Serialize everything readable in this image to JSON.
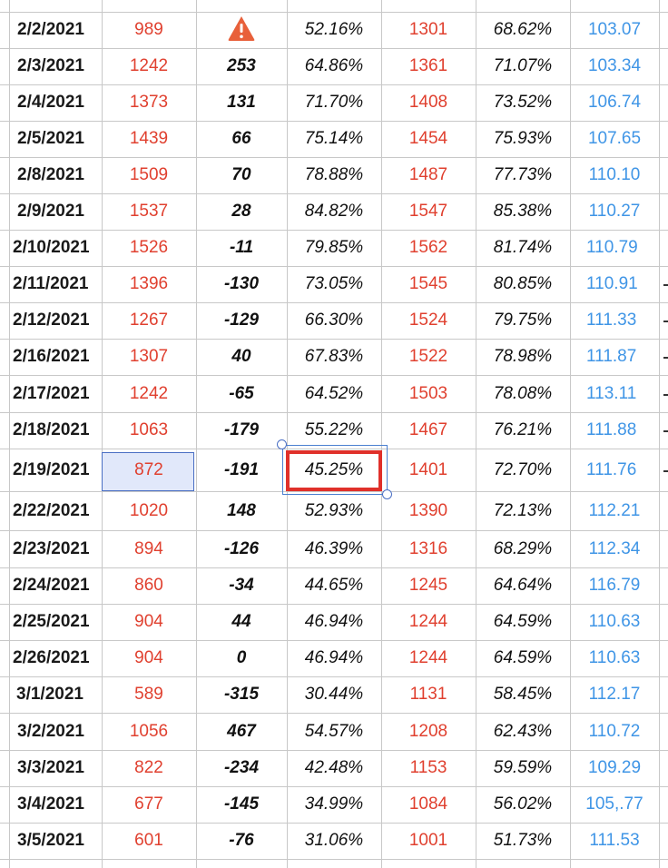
{
  "table": {
    "rows": [
      {
        "date": "2/2/2021",
        "v1": "989",
        "chg": "",
        "pct1": "52.16%",
        "v2": "1301",
        "pct2": "68.62%",
        "v3": "103.07",
        "warning": true
      },
      {
        "date": "2/3/2021",
        "v1": "1242",
        "chg": "253",
        "pct1": "64.86%",
        "v2": "1361",
        "pct2": "71.07%",
        "v3": "103.34"
      },
      {
        "date": "2/4/2021",
        "v1": "1373",
        "chg": "131",
        "pct1": "71.70%",
        "v2": "1408",
        "pct2": "73.52%",
        "v3": "106.74"
      },
      {
        "date": "2/5/2021",
        "v1": "1439",
        "chg": "66",
        "pct1": "75.14%",
        "v2": "1454",
        "pct2": "75.93%",
        "v3": "107.65"
      },
      {
        "date": "2/8/2021",
        "v1": "1509",
        "chg": "70",
        "pct1": "78.88%",
        "v2": "1487",
        "pct2": "77.73%",
        "v3": "110.10"
      },
      {
        "date": "2/9/2021",
        "v1": "1537",
        "chg": "28",
        "pct1": "84.82%",
        "v2": "1547",
        "pct2": "85.38%",
        "v3": "110.27"
      },
      {
        "date": "2/10/2021",
        "v1": "1526",
        "chg": "-11",
        "pct1": "79.85%",
        "v2": "1562",
        "pct2": "81.74%",
        "v3": "110.79"
      },
      {
        "date": "2/11/2021",
        "v1": "1396",
        "chg": "-130",
        "pct1": "73.05%",
        "v2": "1545",
        "pct2": "80.85%",
        "v3": "110.91"
      },
      {
        "date": "2/12/2021",
        "v1": "1267",
        "chg": "-129",
        "pct1": "66.30%",
        "v2": "1524",
        "pct2": "79.75%",
        "v3": "111.33"
      },
      {
        "date": "2/16/2021",
        "v1": "1307",
        "chg": "40",
        "pct1": "67.83%",
        "v2": "1522",
        "pct2": "78.98%",
        "v3": "111.87"
      },
      {
        "date": "2/17/2021",
        "v1": "1242",
        "chg": "-65",
        "pct1": "64.52%",
        "v2": "1503",
        "pct2": "78.08%",
        "v3": "113.11"
      },
      {
        "date": "2/18/2021",
        "v1": "1063",
        "chg": "-179",
        "pct1": "55.22%",
        "v2": "1467",
        "pct2": "76.21%",
        "v3": "111.88"
      },
      {
        "date": "2/19/2021",
        "v1": "872",
        "chg": "-191",
        "pct1": "45.25%",
        "v2": "1401",
        "pct2": "72.70%",
        "v3": "111.76"
      },
      {
        "date": "2/22/2021",
        "v1": "1020",
        "chg": "148",
        "pct1": "52.93%",
        "v2": "1390",
        "pct2": "72.13%",
        "v3": "112.21"
      },
      {
        "date": "2/23/2021",
        "v1": "894",
        "chg": "-126",
        "pct1": "46.39%",
        "v2": "1316",
        "pct2": "68.29%",
        "v3": "112.34"
      },
      {
        "date": "2/24/2021",
        "v1": "860",
        "chg": "-34",
        "pct1": "44.65%",
        "v2": "1245",
        "pct2": "64.64%",
        "v3": "116.79"
      },
      {
        "date": "2/25/2021",
        "v1": "904",
        "chg": "44",
        "pct1": "46.94%",
        "v2": "1244",
        "pct2": "64.59%",
        "v3": "110.63"
      },
      {
        "date": "2/26/2021",
        "v1": "904",
        "chg": "0",
        "pct1": "46.94%",
        "v2": "1244",
        "pct2": "64.59%",
        "v3": "110.63"
      },
      {
        "date": "3/1/2021",
        "v1": "589",
        "chg": "-315",
        "pct1": "30.44%",
        "v2": "1131",
        "pct2": "58.45%",
        "v3": "112.17"
      },
      {
        "date": "3/2/2021",
        "v1": "1056",
        "chg": "467",
        "pct1": "54.57%",
        "v2": "1208",
        "pct2": "62.43%",
        "v3": "110.72"
      },
      {
        "date": "3/3/2021",
        "v1": "822",
        "chg": "-234",
        "pct1": "42.48%",
        "v2": "1153",
        "pct2": "59.59%",
        "v3": "109.29"
      },
      {
        "date": "3/4/2021",
        "v1": "677",
        "chg": "-145",
        "pct1": "34.99%",
        "v2": "1084",
        "pct2": "56.02%",
        "v3": "105,.77"
      },
      {
        "date": "3/5/2021",
        "v1": "601",
        "chg": "-76",
        "pct1": "31.06%",
        "v2": "1001",
        "pct2": "51.73%",
        "v3": "111.53"
      }
    ]
  },
  "colors": {
    "date": "#1a1a1a",
    "red_values": "#e0402f",
    "blue_values": "#3f95e6",
    "selection": "#4a6fc4",
    "highlight_box": "#e0302a",
    "warning": "#e8603a"
  },
  "icons": {
    "warning": "warning-triangle-icon"
  },
  "selection": {
    "active_row": 12,
    "active_column": "v1",
    "highlighted_row": 12,
    "highlighted_column": "pct1"
  }
}
